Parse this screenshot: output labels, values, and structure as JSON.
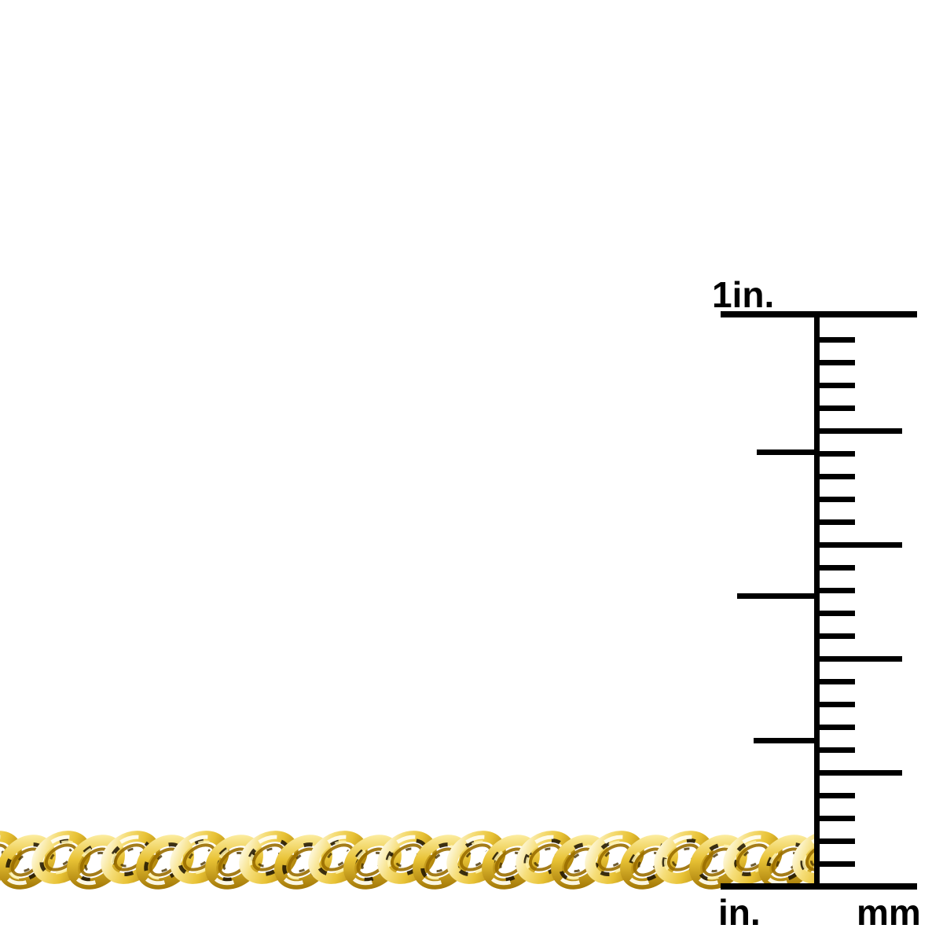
{
  "image": {
    "background_color": "#ffffff",
    "subject": "Yellow gold diamond-cut rope chain shown against a 1 inch / millimeter scale ruler"
  },
  "ruler": {
    "top_label": "1in.",
    "bottom_left_label": "in.",
    "bottom_right_label": "mm",
    "line_color": "#000000",
    "mm_tick_count": 24,
    "long_mm_tick_every": 5,
    "quarter_inch_tick_count": 3
  },
  "chain": {
    "type": "gold-rope-chain",
    "colors": {
      "highlight": "#fffdf0",
      "bright": "#fff3b0",
      "light": "#f6de7a",
      "mid": "#e8c235",
      "deep": "#c8930f",
      "amber": "#9a6e00",
      "shadow": "#4a3300",
      "dark": "#1a1000"
    }
  }
}
